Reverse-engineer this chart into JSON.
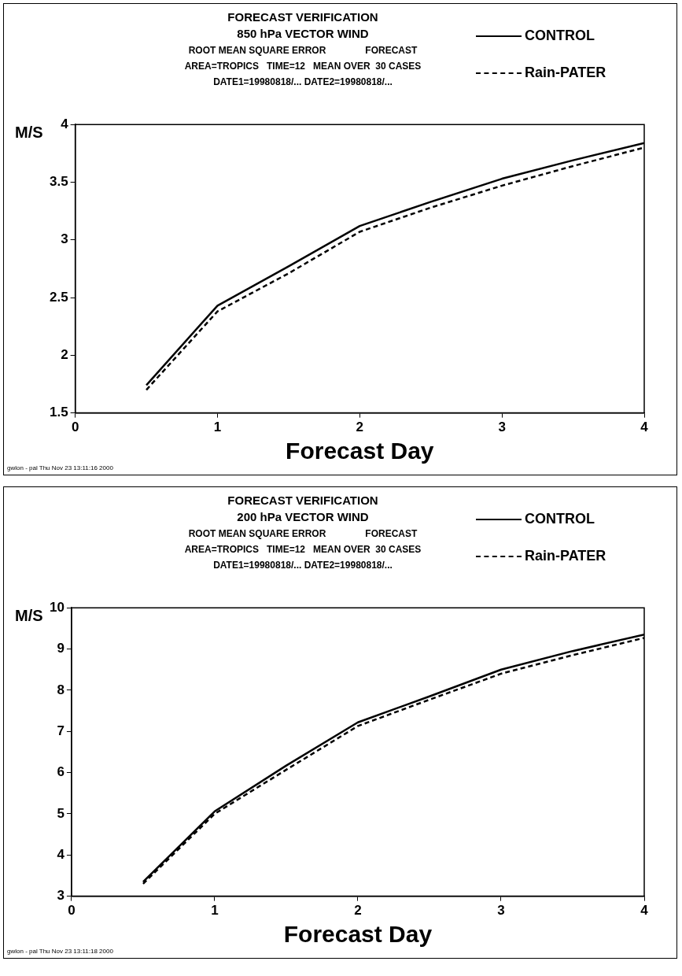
{
  "chart_data": [
    {
      "type": "line",
      "title": "FORECAST VERIFICATION",
      "subtitle": "850 hPa VECTOR WIND",
      "xlabel": "Forecast Day",
      "ylabel": "M/S",
      "annotations": [
        "ROOT MEAN SQUARE ERROR               FORECAST",
        "AREA=TROPICS   TIME=12   MEAN OVER  30 CASES",
        "DATE1=19980818/... DATE2=19980818/...",
        "gwlon - pal Thu Nov 23 13:11:16 2000"
      ],
      "x": [
        0.5,
        1,
        1.5,
        2,
        2.5,
        3,
        3.5,
        4
      ],
      "series": [
        {
          "name": "CONTROL",
          "color": "#000000",
          "line_style": "solid",
          "values": [
            1.74,
            2.43,
            2.77,
            3.12,
            3.33,
            3.53,
            3.69,
            3.84
          ]
        },
        {
          "name": "Rain-PATER",
          "color": "#000000",
          "line_style": "dashed",
          "values": [
            1.7,
            2.38,
            2.71,
            3.07,
            3.28,
            3.47,
            3.64,
            3.8
          ]
        }
      ],
      "xlim": [
        0,
        4
      ],
      "xticks": [
        0,
        1,
        2,
        3,
        4
      ],
      "ylim": [
        1.5,
        4
      ],
      "yticks": [
        1.5,
        2,
        2.5,
        3,
        3.5,
        4
      ],
      "grid": false,
      "legend": "top right",
      "marker": "none"
    },
    {
      "type": "line",
      "title": "FORECAST VERIFICATION",
      "subtitle": "200 hPa VECTOR WIND",
      "xlabel": "Forecast Day",
      "ylabel": "M/S",
      "annotations": [
        "ROOT MEAN SQUARE ERROR               FORECAST",
        "AREA=TROPICS   TIME=12   MEAN OVER  30 CASES",
        "DATE1=19980818/... DATE2=19980818/...",
        "gwlon - pal Thu Nov 23 13:11:18 2000"
      ],
      "x": [
        0.5,
        1,
        1.5,
        2,
        2.5,
        3,
        3.5,
        4
      ],
      "series": [
        {
          "name": "CONTROL",
          "color": "#000000",
          "line_style": "solid",
          "values": [
            3.35,
            5.06,
            6.17,
            7.22,
            7.85,
            8.5,
            8.95,
            9.35
          ]
        },
        {
          "name": "Rain-PATER",
          "color": "#000000",
          "line_style": "dashed",
          "values": [
            3.3,
            5.0,
            6.07,
            7.13,
            7.77,
            8.4,
            8.85,
            9.27
          ]
        }
      ],
      "xlim": [
        0,
        4
      ],
      "xticks": [
        0,
        1,
        2,
        3,
        4
      ],
      "ylim": [
        3,
        10
      ],
      "yticks": [
        3,
        4,
        5,
        6,
        7,
        8,
        9,
        10
      ],
      "grid": false,
      "legend": "top right",
      "marker": "none"
    }
  ]
}
